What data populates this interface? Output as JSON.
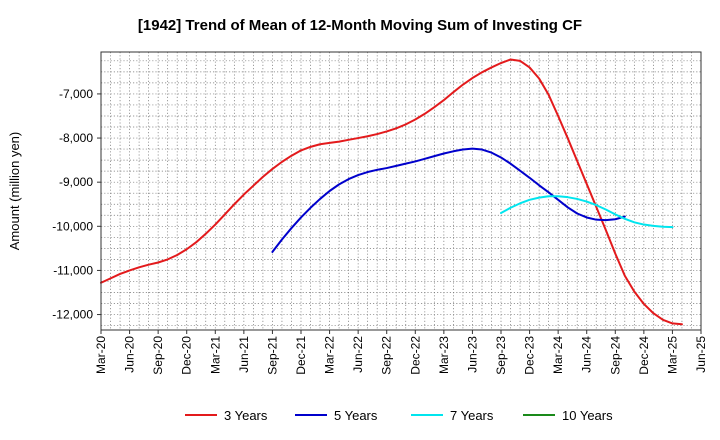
{
  "chart_data": {
    "type": "line",
    "title": "[1942]  Trend of Mean of 12-Month Moving Sum of Investing CF",
    "xlabel": "",
    "ylabel": "Amount (million yen)",
    "ylim": [
      -12350,
      -6050
    ],
    "yticks": [
      -12000,
      -11000,
      -10000,
      -9000,
      -8000,
      -7000
    ],
    "ytick_labels": [
      "-12,000",
      "-11,000",
      "-10,000",
      "-9,000",
      "-8,000",
      "-7,000"
    ],
    "x_start": "Mar-20",
    "x_months": 63,
    "x_tick_labels": [
      "Mar-20",
      "Jun-20",
      "Sep-20",
      "Dec-20",
      "Mar-21",
      "Jun-21",
      "Sep-21",
      "Dec-21",
      "Mar-22",
      "Jun-22",
      "Sep-22",
      "Dec-22",
      "Mar-23",
      "Jun-23",
      "Sep-23",
      "Dec-23",
      "Mar-24",
      "Jun-24",
      "Sep-24",
      "Dec-24",
      "Mar-25",
      "Jun-25"
    ],
    "grid": true,
    "legend_position": "bottom",
    "series": [
      {
        "name": "3 Years",
        "color": "#e31a1c",
        "start_index": 0,
        "values": [
          -11280,
          -11180,
          -11080,
          -11000,
          -10930,
          -10870,
          -10820,
          -10750,
          -10650,
          -10520,
          -10360,
          -10170,
          -9960,
          -9730,
          -9500,
          -9280,
          -9080,
          -8880,
          -8700,
          -8540,
          -8400,
          -8280,
          -8200,
          -8140,
          -8110,
          -8080,
          -8040,
          -8000,
          -7960,
          -7910,
          -7850,
          -7780,
          -7690,
          -7580,
          -7450,
          -7300,
          -7140,
          -6960,
          -6790,
          -6640,
          -6510,
          -6400,
          -6300,
          -6220,
          -6250,
          -6400,
          -6650,
          -7020,
          -7500,
          -8000,
          -8520,
          -9040,
          -9560,
          -10080,
          -10620,
          -11120,
          -11480,
          -11760,
          -11970,
          -12120,
          -12200,
          -12220
        ]
      },
      {
        "name": "5 Years",
        "color": "#0000cc",
        "start_index": 18,
        "values": [
          -10580,
          -10300,
          -10040,
          -9800,
          -9580,
          -9380,
          -9200,
          -9050,
          -8930,
          -8840,
          -8770,
          -8720,
          -8680,
          -8630,
          -8580,
          -8530,
          -8470,
          -8410,
          -8350,
          -8300,
          -8260,
          -8240,
          -8260,
          -8330,
          -8440,
          -8580,
          -8740,
          -8900,
          -9070,
          -9230,
          -9400,
          -9570,
          -9710,
          -9800,
          -9850,
          -9860,
          -9840,
          -9780
        ]
      },
      {
        "name": "7 Years",
        "color": "#00e5ee",
        "start_index": 42,
        "values": [
          -9700,
          -9580,
          -9480,
          -9400,
          -9350,
          -9320,
          -9320,
          -9340,
          -9380,
          -9440,
          -9520,
          -9620,
          -9730,
          -9830,
          -9910,
          -9960,
          -9990,
          -10010,
          -10020
        ]
      },
      {
        "name": "10 Years",
        "color": "#1a8a1a",
        "start_index": 0,
        "values": []
      }
    ]
  }
}
